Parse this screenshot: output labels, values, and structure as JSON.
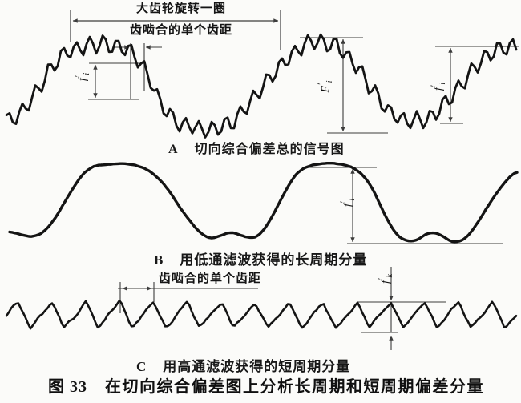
{
  "figure": {
    "label": "图 33",
    "title": "在切向综合偏差图上分析长周期和短周期偏差分量"
  },
  "top_annotations": {
    "gear_revolution": "大齿轮旋转一圈",
    "single_pitch": "齿啮合的单个齿距"
  },
  "panel_c_annotation": {
    "single_pitch": "齿啮合的单个齿距"
  },
  "panels": {
    "a": {
      "letter": "A",
      "caption": "切向综合偏差总的信号图"
    },
    "b": {
      "letter": "B",
      "caption": "用低通滤波获得的长周期分量"
    },
    "c": {
      "letter": "C",
      "caption": "用高通滤波获得的短周期分量"
    }
  },
  "symbols": {
    "a_left": {
      "base": "f",
      "prime": "′",
      "sub": "i"
    },
    "a_total": {
      "base": "F",
      "prime": "′",
      "sub": "i"
    },
    "a_right": {
      "base": "f",
      "prime": "′",
      "sub": "i"
    },
    "b_long": {
      "base": "f",
      "prime": "′",
      "sub": "l"
    },
    "c_short": {
      "base": "f",
      "prime": "′",
      "sub": "k"
    }
  },
  "colors": {
    "ink": "#141414",
    "dim": "#3c3c3c",
    "paper": "#fbfbf9"
  },
  "chart_data": [
    {
      "id": "A",
      "type": "line",
      "name": "total-tangential-composite-deviation-signal",
      "description": "切向综合偏差总的信号图: long-period wave (≈2 gear revolutions) with superimposed tooth-mesh ripple and noise",
      "keypoints": [
        [
          8,
          152
        ],
        [
          22,
          146
        ],
        [
          38,
          128
        ],
        [
          55,
          100
        ],
        [
          70,
          76
        ],
        [
          85,
          64
        ],
        [
          100,
          58
        ],
        [
          118,
          54
        ],
        [
          135,
          56
        ],
        [
          152,
          60
        ],
        [
          166,
          68
        ],
        [
          178,
          82
        ],
        [
          190,
          105
        ],
        [
          202,
          132
        ],
        [
          214,
          148
        ],
        [
          228,
          156
        ],
        [
          245,
          160
        ],
        [
          262,
          162
        ],
        [
          278,
          158
        ],
        [
          295,
          148
        ],
        [
          312,
          130
        ],
        [
          328,
          108
        ],
        [
          344,
          88
        ],
        [
          360,
          70
        ],
        [
          378,
          58
        ],
        [
          395,
          52
        ],
        [
          412,
          54
        ],
        [
          428,
          62
        ],
        [
          442,
          78
        ],
        [
          456,
          100
        ],
        [
          470,
          122
        ],
        [
          484,
          138
        ],
        [
          498,
          148
        ],
        [
          512,
          152
        ],
        [
          526,
          150
        ],
        [
          540,
          144
        ],
        [
          554,
          132
        ],
        [
          568,
          116
        ],
        [
          582,
          98
        ],
        [
          596,
          82
        ],
        [
          612,
          68
        ],
        [
          628,
          60
        ],
        [
          645,
          56
        ]
      ],
      "step": 4,
      "smooth_passes": 2,
      "ripple": {
        "period": 17,
        "amplitude": 10,
        "phase_peak_x": 163
      },
      "noise": {
        "amplitude": 4,
        "seed": 7,
        "smooth": 1
      },
      "stroke_width": 2.8
    },
    {
      "id": "B",
      "type": "line",
      "name": "long-period-component-lowpass",
      "description": "用低通滤波获得的长周期分量: smooth low-pass filtered curve",
      "keypoints": [
        [
          12,
          289
        ],
        [
          26,
          293
        ],
        [
          40,
          296
        ],
        [
          54,
          291
        ],
        [
          68,
          274
        ],
        [
          82,
          250
        ],
        [
          94,
          230
        ],
        [
          106,
          214
        ],
        [
          118,
          207
        ],
        [
          134,
          205
        ],
        [
          152,
          204
        ],
        [
          168,
          206
        ],
        [
          184,
          211
        ],
        [
          198,
          222
        ],
        [
          212,
          240
        ],
        [
          226,
          261
        ],
        [
          240,
          280
        ],
        [
          252,
          293
        ],
        [
          264,
          298
        ],
        [
          276,
          294
        ],
        [
          286,
          289
        ],
        [
          296,
          291
        ],
        [
          308,
          297
        ],
        [
          320,
          297
        ],
        [
          332,
          284
        ],
        [
          344,
          262
        ],
        [
          356,
          238
        ],
        [
          368,
          218
        ],
        [
          380,
          209
        ],
        [
          394,
          205
        ],
        [
          410,
          203
        ],
        [
          426,
          205
        ],
        [
          440,
          209
        ],
        [
          452,
          216
        ],
        [
          464,
          234
        ],
        [
          476,
          260
        ],
        [
          488,
          283
        ],
        [
          498,
          296
        ],
        [
          510,
          302
        ],
        [
          522,
          299
        ],
        [
          532,
          292
        ],
        [
          542,
          289
        ],
        [
          552,
          294
        ],
        [
          564,
          303
        ],
        [
          576,
          301
        ],
        [
          588,
          290
        ],
        [
          600,
          272
        ],
        [
          612,
          252
        ],
        [
          624,
          234
        ],
        [
          636,
          220
        ],
        [
          646,
          213
        ]
      ],
      "step": 3,
      "smooth_passes": 4,
      "ripple": {
        "period": 60,
        "amplitude": 0,
        "phase_peak_x": 0
      },
      "noise": {
        "amplitude": 1.2,
        "seed": 3,
        "smooth": 2
      },
      "stroke_width": 3.4
    },
    {
      "id": "C",
      "type": "line",
      "name": "short-period-component-highpass",
      "description": "用高通滤波获得的短周期分量: tooth-frequency sawtooth-like wave, one pitch ≈ 42 px",
      "waveform": "asymmetric-sawtooth",
      "x_range": [
        8,
        646
      ],
      "base_y": 393,
      "amplitude": 16,
      "period": 42.3,
      "peak_x": 192,
      "fall_fraction": 0.35,
      "step": 3,
      "noise": {
        "amplitude": 3.5,
        "seed": 11,
        "smooth": 1
      },
      "stroke_width": 2.6
    }
  ]
}
